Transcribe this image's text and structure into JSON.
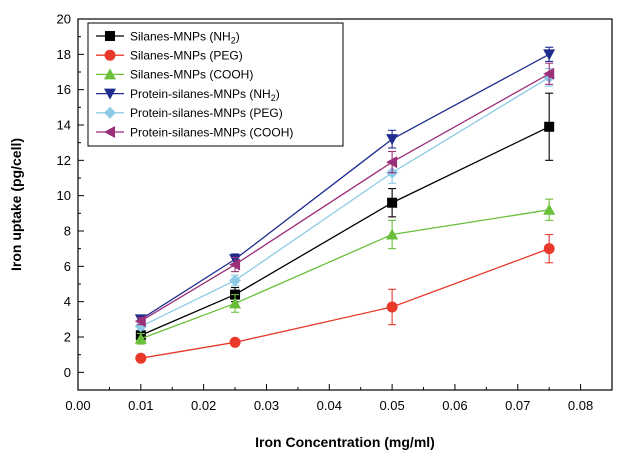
{
  "chart_data": {
    "type": "line",
    "xlabel": "Iron Concentration (mg/ml)",
    "ylabel": "Iron uptake (pg/cell)",
    "xlim": [
      0.0,
      0.085
    ],
    "ylim": [
      -1,
      20
    ],
    "x_ticks": [
      "0.00",
      "0.01",
      "0.02",
      "0.03",
      "0.04",
      "0.05",
      "0.06",
      "0.07",
      "0.08"
    ],
    "y_ticks": [
      "0",
      "2",
      "4",
      "6",
      "8",
      "10",
      "12",
      "14",
      "16",
      "18",
      "20"
    ],
    "x": [
      0.01,
      0.025,
      0.05,
      0.075
    ],
    "legend_position": "top-left",
    "series": [
      {
        "name": "Silanes-MNPs (NH",
        "name_sub": "2",
        "name_suffix": ")",
        "marker": "square",
        "color": "#000000",
        "values": [
          2.1,
          4.4,
          9.6,
          13.9
        ],
        "errors": [
          0.2,
          0.4,
          0.8,
          1.9
        ]
      },
      {
        "name": "Silanes-MNPs (PEG)",
        "marker": "circle",
        "color": "#e8392b",
        "values": [
          0.8,
          1.7,
          3.7,
          7.0
        ],
        "errors": [
          0.1,
          0.1,
          1.0,
          0.8
        ]
      },
      {
        "name": "Silanes-MNPs (COOH)",
        "marker": "triangle-up",
        "color": "#6abf3a",
        "values": [
          1.9,
          3.9,
          7.8,
          9.2
        ],
        "errors": [
          0.3,
          0.5,
          0.8,
          0.6
        ]
      },
      {
        "name": "Protein-silanes-MNPs (NH",
        "name_sub": "2",
        "name_suffix": ")",
        "marker": "triangle-down",
        "color": "#1f2d8f",
        "values": [
          3.0,
          6.4,
          13.2,
          18.0
        ],
        "errors": [
          0.15,
          0.3,
          0.5,
          0.4
        ]
      },
      {
        "name": "Protein-silanes-MNPs (PEG)",
        "marker": "diamond",
        "color": "#8ecae6",
        "values": [
          2.6,
          5.2,
          11.3,
          16.7
        ],
        "errors": [
          0.2,
          0.3,
          0.6,
          0.5
        ]
      },
      {
        "name": "Protein-silanes-MNPs (COOH)",
        "marker": "triangle-left",
        "color": "#9b2f7a",
        "values": [
          2.9,
          6.1,
          11.9,
          16.9
        ],
        "errors": [
          0.2,
          0.4,
          0.6,
          0.6
        ]
      }
    ]
  }
}
